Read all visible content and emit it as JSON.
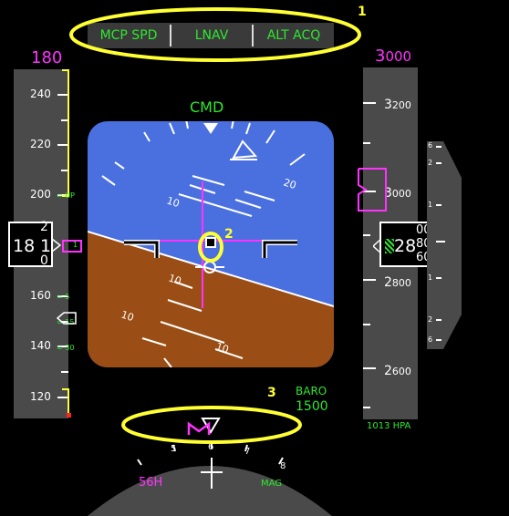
{
  "fma": {
    "speed_mode": "MCP SPD",
    "roll_mode": "LNAV",
    "pitch_mode": "ALT ACQ"
  },
  "autopilot_status": "CMD",
  "selected_speed": "180",
  "selected_altitude": {
    "thousands": "3",
    "hundreds": "000"
  },
  "speed_tape": {
    "labels": [
      "240",
      "220",
      "200",
      "180",
      "160",
      "140",
      "120"
    ],
    "current_speed_main": "18",
    "current_speed_last": "1",
    "current_speed_rolling": [
      "2",
      "1",
      "0"
    ],
    "flap_markers": [
      "UP",
      "1",
      "5",
      "15",
      "30"
    ]
  },
  "altitude_tape": {
    "labels": [
      {
        "big": "3",
        "small": "200"
      },
      {
        "big": "3",
        "small": "000"
      },
      {
        "big": "2",
        "small": "800"
      },
      {
        "big": "2",
        "small": "600"
      }
    ],
    "current_altitude_main": "28",
    "current_altitude_rolling": [
      "00",
      "80",
      "60"
    ],
    "baro_setting": "1013 HPA"
  },
  "vsi_scale": {
    "up": [
      "6",
      "2",
      "1"
    ],
    "down": [
      "1",
      "2",
      "6"
    ]
  },
  "pitch_scale": [
    "10",
    "10",
    "10",
    "10"
  ],
  "bank_scale_label": "20",
  "minimums": {
    "label": "BARO",
    "value": "1500"
  },
  "heading": {
    "selected": "56H",
    "reference": "MAG",
    "ticks": [
      "5",
      "6",
      "7",
      "8"
    ]
  },
  "callouts": [
    "1",
    "2",
    "3"
  ],
  "colors": {
    "sky": "#4a70e0",
    "ground": "#9a4d14",
    "tape": "#4a4a4a",
    "green": "#2ee82e",
    "magenta": "#ff33ff",
    "callout": "#ffff33"
  }
}
